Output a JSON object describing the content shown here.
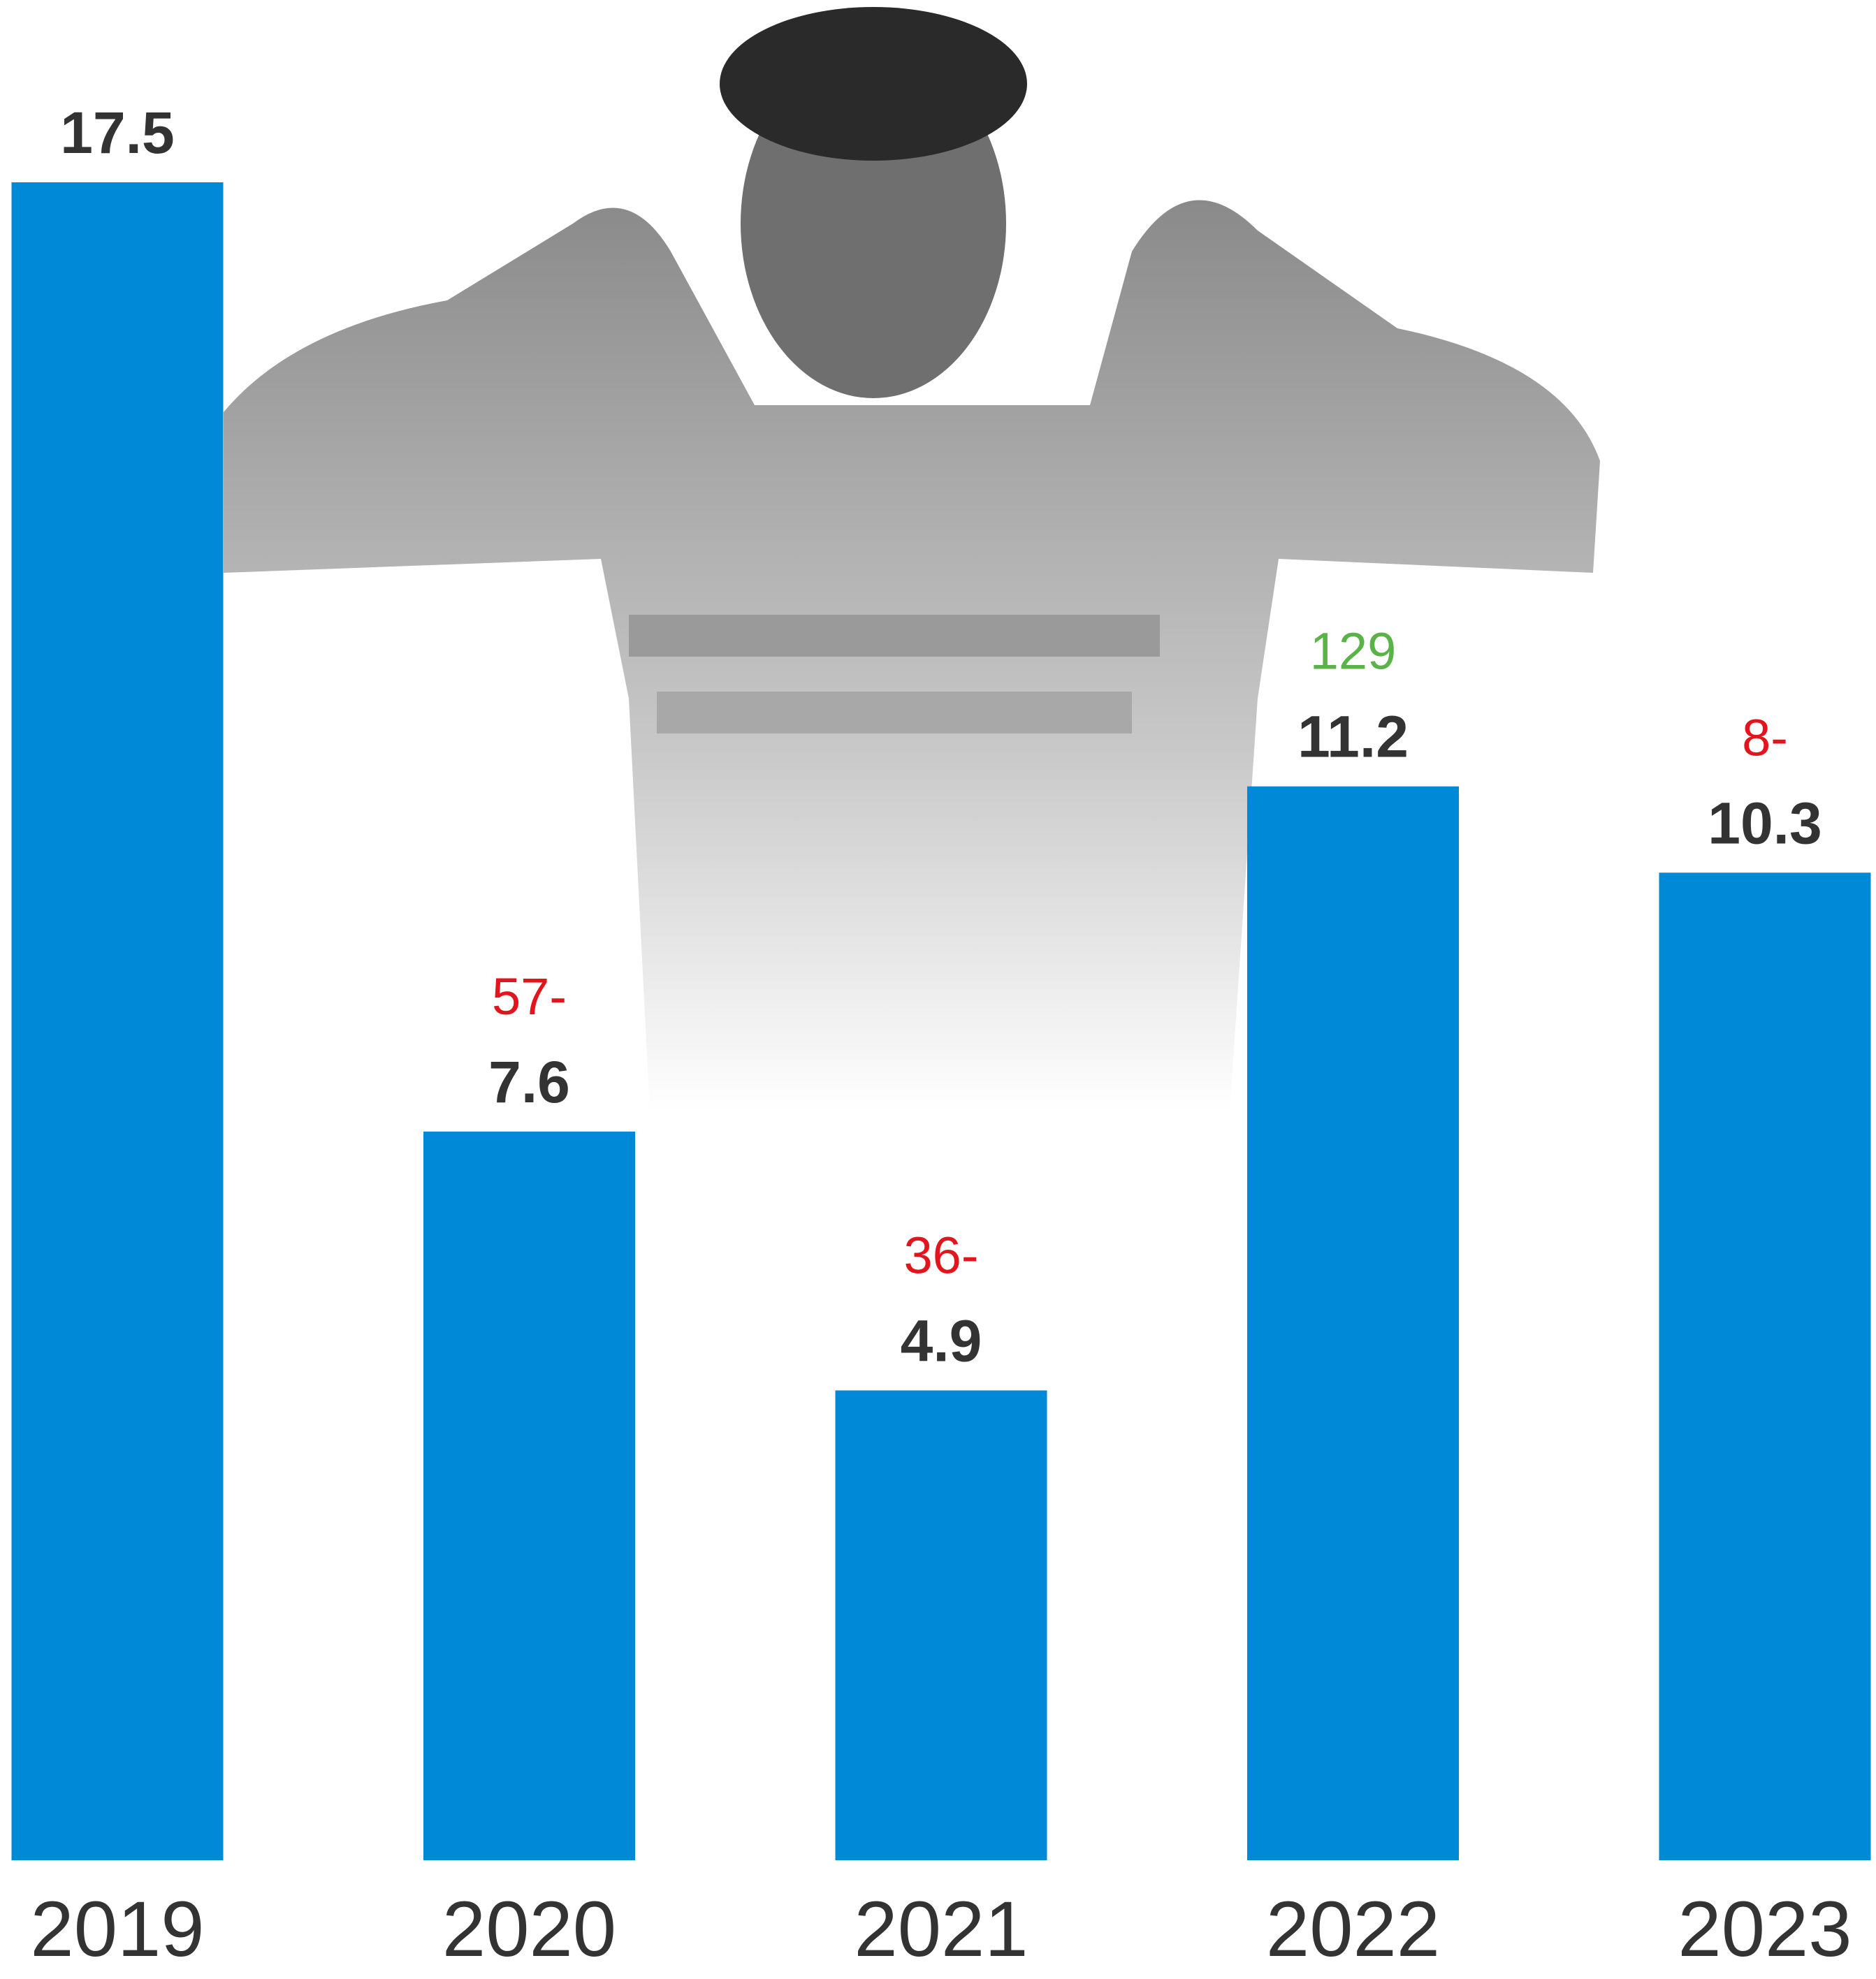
{
  "chart_data": {
    "type": "bar",
    "categories": [
      "2019",
      "2020",
      "2021",
      "2022",
      "2023"
    ],
    "values": [
      17.5,
      7.6,
      4.9,
      11.2,
      10.3
    ],
    "color": "#0089d6",
    "change_labels": [
      null,
      "57-",
      "36-",
      "129",
      "8-"
    ],
    "change_colors": [
      null,
      "#e3141b",
      "#e3141b",
      "#5ab346",
      "#e3141b"
    ]
  }
}
